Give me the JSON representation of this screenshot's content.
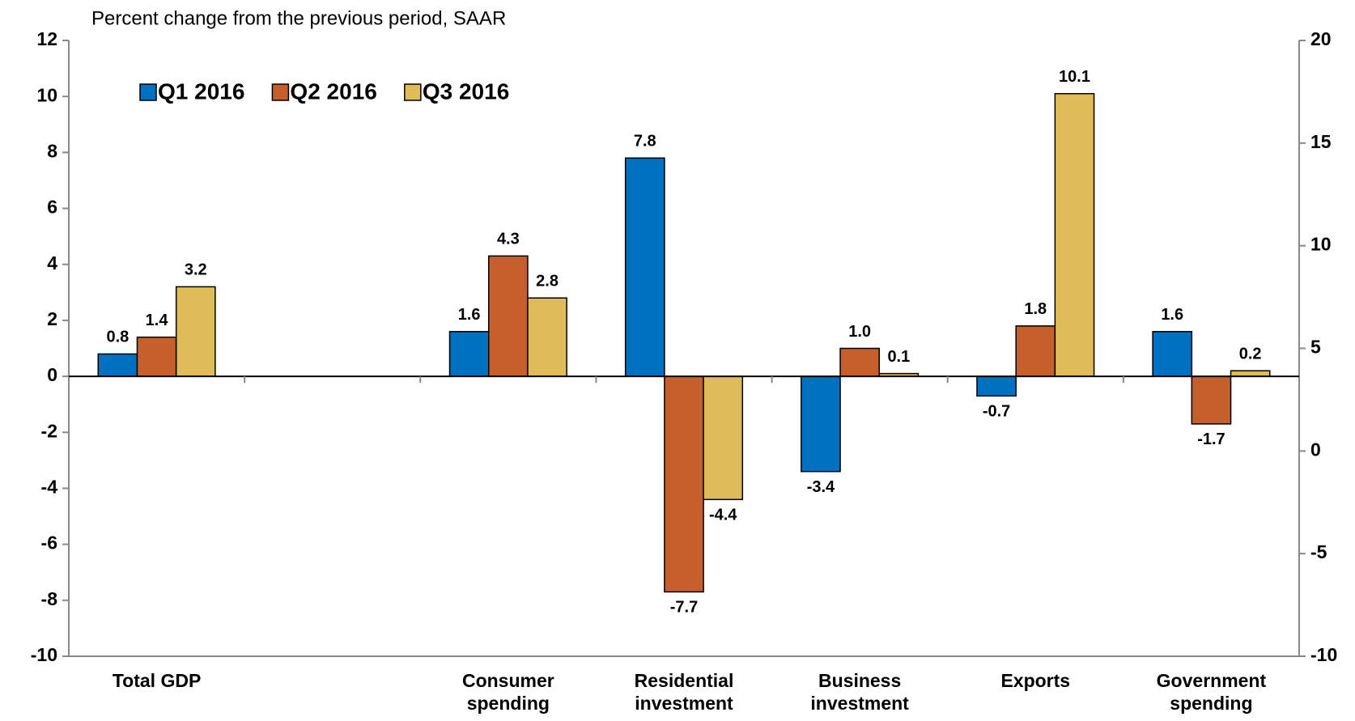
{
  "chart_data": {
    "type": "bar",
    "subtitle": "Percent change from the previous period, SAAR",
    "categories": [
      "Total GDP",
      null,
      "Consumer spending",
      "Residential investment",
      "Business investment",
      "Exports",
      "Government spending"
    ],
    "series": [
      {
        "name": "Q1 2016",
        "color": "#0070c0",
        "values": [
          0.8,
          null,
          1.6,
          7.8,
          -3.4,
          -0.7,
          1.6
        ],
        "value_labels": [
          "0.8",
          null,
          "1.6",
          "7.8",
          "-3.4",
          "-0.7",
          "1.6"
        ]
      },
      {
        "name": "Q2 2016",
        "color": "#c5602d",
        "values": [
          1.4,
          null,
          4.3,
          -7.7,
          1.0,
          1.8,
          -1.7
        ],
        "value_labels": [
          "1.4",
          null,
          "4.3",
          "-7.7",
          "1.0",
          "1.8",
          "-1.7"
        ]
      },
      {
        "name": "Q3 2016",
        "color": "#e0bc58",
        "values": [
          3.2,
          null,
          2.8,
          -4.4,
          0.1,
          10.1,
          0.2
        ],
        "value_labels": [
          "3.2",
          null,
          "2.8",
          "-4.4",
          "0.1",
          "10.1",
          "0.2"
        ]
      }
    ],
    "ylim": [
      -10,
      12
    ],
    "yticks": [
      -10,
      -8,
      -6,
      -4,
      -2,
      0,
      2,
      4,
      6,
      8,
      10,
      12
    ],
    "y2lim": [
      -10,
      20
    ],
    "y2ticks": [
      -10,
      -5,
      0,
      5,
      10,
      15,
      20
    ],
    "legend": "upper left",
    "grid": false
  }
}
